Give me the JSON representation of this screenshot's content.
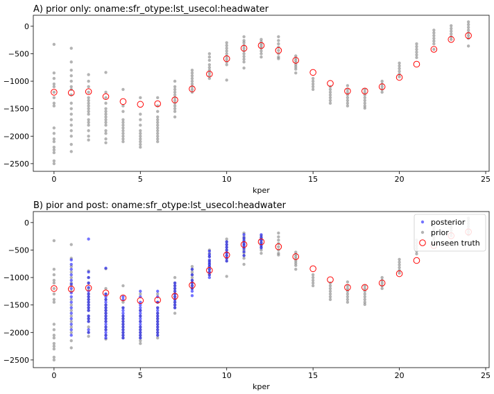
{
  "chart_data": [
    {
      "type": "scatter",
      "title": "A) prior only: oname:sfr_otype:lst_usecol:headwater",
      "xlabel": "kper",
      "ylabel": "",
      "xlim": [
        -1.2,
        25.2
      ],
      "ylim": [
        -2640,
        200
      ],
      "xticks": [
        0,
        5,
        10,
        15,
        20,
        25
      ],
      "yticks": [
        0,
        -500,
        -1000,
        -1500,
        -2000,
        -2500
      ],
      "grid": false,
      "legend": null,
      "truth": [
        -1200,
        -1210,
        -1190,
        -1280,
        -1370,
        -1420,
        -1410,
        -1340,
        -1140,
        -870,
        -590,
        -400,
        -350,
        -440,
        -620,
        -840,
        -1040,
        -1180,
        -1180,
        -1100,
        -930,
        -690,
        -420,
        -240,
        -170
      ],
      "prior": [
        [
          -330,
          -850,
          -950,
          -1050,
          -1100,
          -1200,
          -1300,
          -1400,
          -1450,
          -1850,
          -1950,
          -2050,
          -2100,
          -2200,
          -2250,
          -2300,
          -2450,
          -2500
        ],
        [
          -400,
          -650,
          -800,
          -900,
          -1000,
          -1100,
          -1150,
          -1250,
          -1400,
          -1500,
          -1600,
          -1700,
          -1800,
          -1900,
          -2000,
          -2150,
          -2280
        ],
        [
          -880,
          -1000,
          -1100,
          -1200,
          -1300,
          -1350,
          -1400,
          -1450,
          -1500,
          -1550,
          -1600,
          -1700,
          -1750,
          -1800,
          -1900,
          -2000,
          -2070
        ],
        [
          -840,
          -1200,
          -1300,
          -1400,
          -1500,
          -1550,
          -1600,
          -1650,
          -1700,
          -1750,
          -1800,
          -1900,
          -1950,
          -2050,
          -2120
        ],
        [
          -1150,
          -1450,
          -1550,
          -1700,
          -1750,
          -1800,
          -1850,
          -1900,
          -1950,
          -2000,
          -2050,
          -2100
        ],
        [
          -1300,
          -1600,
          -1700,
          -1800,
          -1900,
          -1950,
          -2000,
          -2050,
          -2100,
          -2150,
          -2200
        ],
        [
          -1300,
          -1450,
          -1550,
          -1650,
          -1700,
          -1750,
          -1800,
          -1850,
          -1900,
          -1950,
          -2000,
          -2050,
          -2100
        ],
        [
          -1000,
          -1100,
          -1150,
          -1200,
          -1250,
          -1300,
          -1350,
          -1400,
          -1450,
          -1500,
          -1550,
          -1650
        ],
        [
          -800,
          -850,
          -900,
          -950,
          -1000,
          -1050,
          -1100,
          -1150,
          -1200
        ],
        [
          -500,
          -560,
          -620,
          -700,
          -750,
          -800,
          -850,
          -900,
          -950
        ],
        [
          -300,
          -350,
          -400,
          -450,
          -500,
          -550,
          -600,
          -650,
          -700,
          -980
        ],
        [
          -190,
          -260,
          -300,
          -350,
          -400,
          -450,
          -500,
          -550,
          -600,
          -650,
          -760
        ],
        [
          -240,
          -280,
          -320,
          -360,
          -400,
          -450,
          -500,
          -560
        ],
        [
          -190,
          -260,
          -320,
          -380,
          -440,
          -500,
          -560,
          -590
        ],
        [
          -540,
          -580,
          -620,
          -660,
          -700,
          -740,
          -780,
          -850
        ],
        [
          -950,
          -1000,
          -1050,
          -1100,
          -1150
        ],
        [
          -1100,
          -1150,
          -1200,
          -1250,
          -1300,
          -1350,
          -1400
        ],
        [
          -1080,
          -1150,
          -1200,
          -1250,
          -1300,
          -1350,
          -1400,
          -1450
        ],
        [
          -1150,
          -1200,
          -1250,
          -1300,
          -1350,
          -1400,
          -1450,
          -1490
        ],
        [
          -1000,
          -1050,
          -1100,
          -1150,
          -1200
        ],
        [
          -670,
          -720,
          -770,
          -820,
          -870,
          -920
        ],
        [
          -320,
          -370,
          -420,
          -470,
          -520,
          -570
        ],
        [
          -70,
          -120,
          -170,
          -220,
          -270,
          -320,
          -420
        ],
        [
          10,
          -40,
          -90,
          -140,
          -190,
          -240
        ],
        [
          80,
          30,
          -20,
          -70,
          -120,
          -170,
          -220,
          -360
        ]
      ]
    },
    {
      "type": "scatter",
      "title": "B) pior and post: oname:sfr_otype:lst_usecol:headwater",
      "xlabel": "kper",
      "ylabel": "",
      "xlim": [
        -1.2,
        25.2
      ],
      "ylim": [
        -2640,
        200
      ],
      "xticks": [
        0,
        5,
        10,
        15,
        20,
        25
      ],
      "yticks": [
        0,
        -500,
        -1000,
        -1500,
        -2000,
        -2500
      ],
      "grid": false,
      "legend": {
        "position": "top-right",
        "entries": [
          "posterior",
          "prior",
          "unseen truth"
        ]
      },
      "colors": {
        "posterior": "#0000ff",
        "prior": "#808080",
        "truth": "#ff0000"
      },
      "posterior": [
        [],
        [
          -680,
          -760,
          -850,
          -950,
          -1050,
          -1120,
          -1200,
          -1280,
          -1350,
          -1450,
          -1550,
          -1650,
          -1750,
          -1850,
          -1950,
          -2050
        ],
        [
          -300,
          -900,
          -1000,
          -1100,
          -1180,
          -1250,
          -1300,
          -1350,
          -1400,
          -1450,
          -1500,
          -1550,
          -1600,
          -1700,
          -1750,
          -1800,
          -1950,
          -2000
        ],
        [
          -830,
          -1300,
          -1350,
          -1400,
          -1450,
          -1500,
          -1550,
          -1600,
          -1650,
          -1700,
          -1750,
          -1800,
          -1850,
          -1900,
          -1950,
          -2000,
          -2050,
          -2100
        ],
        [
          -1350,
          -1400,
          -1550,
          -1600,
          -1650,
          -1700,
          -1750,
          -1800,
          -1850,
          -1900,
          -1950,
          -2000,
          -2050,
          -2100
        ],
        [
          -1250,
          -1350,
          -1450,
          -1500,
          -1550,
          -1600,
          -1650,
          -1700,
          -1750,
          -1800,
          -1850,
          -1900,
          -1950,
          -2000,
          -2050,
          -2100
        ],
        [
          -1250,
          -1350,
          -1450,
          -1550,
          -1600,
          -1650,
          -1700,
          -1750,
          -1800,
          -1850,
          -1900,
          -1950,
          -2000,
          -2050
        ],
        [
          -1100,
          -1150,
          -1200,
          -1250,
          -1300,
          -1350,
          -1400,
          -1450,
          -1500,
          -1550
        ],
        [
          -850,
          -950,
          -1050,
          -1100,
          -1150,
          -1200,
          -1250,
          -1330
        ],
        [
          -520,
          -580,
          -620,
          -680,
          -720,
          -760,
          -800,
          -850,
          -900,
          -950,
          -1000
        ],
        [
          -350,
          -400,
          -450,
          -500,
          -550,
          -600,
          -650,
          -700
        ],
        [
          -220,
          -280,
          -330,
          -380,
          -420,
          -470,
          -530,
          -600
        ],
        [
          -220,
          -270,
          -320,
          -370,
          -420,
          -460
        ],
        [],
        [],
        [],
        [],
        [],
        [],
        [],
        [],
        [],
        [],
        [],
        []
      ],
      "prior": [
        [
          -330,
          -850,
          -950,
          -1050,
          -1100,
          -1200,
          -1300,
          -1400,
          -1450,
          -1850,
          -1950,
          -2050,
          -2100,
          -2200,
          -2250,
          -2300,
          -2450,
          -2500
        ],
        [
          -400,
          -650,
          -800,
          -900,
          -1000,
          -1100,
          -1150,
          -1250,
          -1400,
          -1500,
          -1600,
          -1700,
          -1800,
          -1900,
          -2000,
          -2150,
          -2280
        ],
        [
          -880,
          -1000,
          -1100,
          -1200,
          -1300,
          -1350,
          -1400,
          -1450,
          -1500,
          -1550,
          -1600,
          -1700,
          -1750,
          -1800,
          -1900,
          -2000,
          -2070
        ],
        [
          -840,
          -1200,
          -1300,
          -1400,
          -1500,
          -1550,
          -1600,
          -1650,
          -1700,
          -1750,
          -1800,
          -1900,
          -1950,
          -2050,
          -2120
        ],
        [
          -1150,
          -1450,
          -1550,
          -1700,
          -1750,
          -1800,
          -1850,
          -1900,
          -1950,
          -2000,
          -2050,
          -2100
        ],
        [
          -1300,
          -1600,
          -1700,
          -1800,
          -1900,
          -1950,
          -2000,
          -2050,
          -2100,
          -2150,
          -2200
        ],
        [
          -1300,
          -1450,
          -1550,
          -1650,
          -1700,
          -1750,
          -1800,
          -1850,
          -1900,
          -1950,
          -2000,
          -2050,
          -2100
        ],
        [
          -1000,
          -1100,
          -1150,
          -1200,
          -1250,
          -1300,
          -1350,
          -1400,
          -1450,
          -1500,
          -1550,
          -1650
        ],
        [
          -800,
          -850,
          -900,
          -950,
          -1000,
          -1050,
          -1100,
          -1150,
          -1200
        ],
        [
          -500,
          -560,
          -620,
          -700,
          -750,
          -800,
          -850,
          -900,
          -950
        ],
        [
          -300,
          -350,
          -400,
          -450,
          -500,
          -550,
          -600,
          -650,
          -700,
          -980
        ],
        [
          -190,
          -260,
          -300,
          -350,
          -400,
          -450,
          -500,
          -550,
          -600,
          -650,
          -760
        ],
        [
          -240,
          -280,
          -320,
          -360,
          -400,
          -450,
          -500,
          -560
        ],
        [
          -190,
          -260,
          -320,
          -380,
          -440,
          -500,
          -560,
          -590
        ],
        [
          -540,
          -580,
          -620,
          -660,
          -700,
          -740,
          -780,
          -850
        ],
        [
          -950,
          -1000,
          -1050,
          -1100,
          -1150
        ],
        [
          -1100,
          -1150,
          -1200,
          -1250,
          -1300,
          -1350,
          -1400
        ],
        [
          -1080,
          -1150,
          -1200,
          -1250,
          -1300,
          -1350,
          -1400,
          -1450
        ],
        [
          -1150,
          -1200,
          -1250,
          -1300,
          -1350,
          -1400,
          -1450,
          -1490
        ],
        [
          -1000,
          -1050,
          -1100,
          -1150,
          -1200
        ],
        [
          -670,
          -720,
          -770,
          -820,
          -870,
          -920
        ],
        [
          -320,
          -370,
          -420,
          -470,
          -520,
          -570
        ],
        [
          -70,
          -120,
          -170,
          -220,
          -270,
          -320,
          -420
        ],
        [
          10,
          -40,
          -90,
          -140,
          -190,
          -240
        ],
        [
          80,
          30,
          -20,
          -70,
          -120,
          -170,
          -220,
          -360
        ]
      ],
      "truth": [
        -1200,
        -1210,
        -1190,
        -1280,
        -1370,
        -1420,
        -1410,
        -1340,
        -1140,
        -870,
        -590,
        -400,
        -350,
        -440,
        -620,
        -840,
        -1040,
        -1180,
        -1180,
        -1100,
        -930,
        -690,
        -420,
        -240,
        -170
      ]
    }
  ]
}
